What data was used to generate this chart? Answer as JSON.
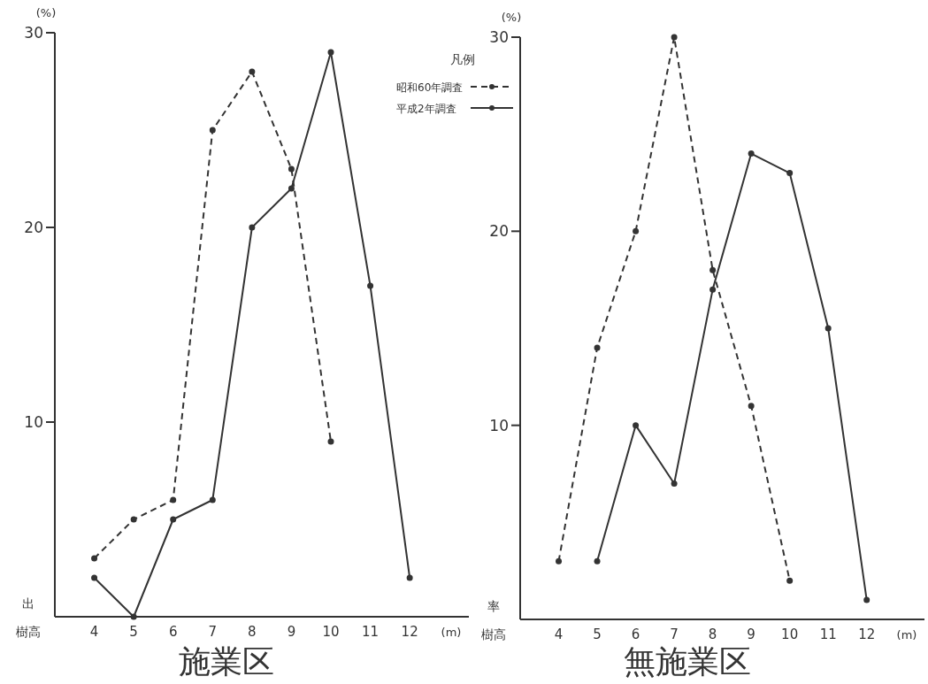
{
  "chart_data": [
    {
      "type": "line",
      "title": "施業区",
      "xlabel": "樹高",
      "ylabel": "(%)",
      "annotations": [
        "出",
        "(m)"
      ],
      "x": [
        4,
        5,
        6,
        7,
        8,
        9,
        10,
        11,
        12
      ],
      "xlim": [
        3,
        13.5
      ],
      "xticks": [
        4,
        5,
        6,
        7,
        8,
        9,
        10,
        11,
        12
      ],
      "ylim": [
        0,
        30
      ],
      "yticks": [
        10,
        20,
        30
      ],
      "grid": false,
      "marker": "circle",
      "series": [
        {
          "color": "#333333",
          "line_style": "dashed",
          "values": [
            3,
            5,
            6,
            25,
            28,
            23,
            9,
            null,
            null
          ]
        },
        {
          "color": "#333333",
          "line_style": "solid",
          "values": [
            2,
            0,
            5,
            6,
            20,
            22,
            29,
            17,
            2
          ]
        }
      ]
    },
    {
      "type": "line",
      "title": "無施業区",
      "xlabel": "樹高",
      "ylabel": "(%)",
      "annotations": [
        "率",
        "(m)"
      ],
      "x": [
        4,
        5,
        6,
        7,
        8,
        9,
        10,
        11,
        12
      ],
      "xlim": [
        3,
        13.5
      ],
      "xticks": [
        4,
        5,
        6,
        7,
        8,
        9,
        10,
        11,
        12
      ],
      "ylim": [
        0,
        30
      ],
      "yticks": [
        10,
        20,
        30
      ],
      "grid": false,
      "marker": "circle",
      "legend": "top left",
      "legend_title": "凡例",
      "series": [
        {
          "name": "昭和60年調査",
          "color": "#333333",
          "line_style": "dashed",
          "values": [
            3,
            14,
            20,
            30,
            18,
            11,
            2,
            null,
            null
          ]
        },
        {
          "name": "平成2年調査",
          "color": "#333333",
          "line_style": "solid",
          "values": [
            null,
            3,
            10,
            7,
            17,
            24,
            23,
            15,
            1
          ]
        }
      ]
    }
  ]
}
